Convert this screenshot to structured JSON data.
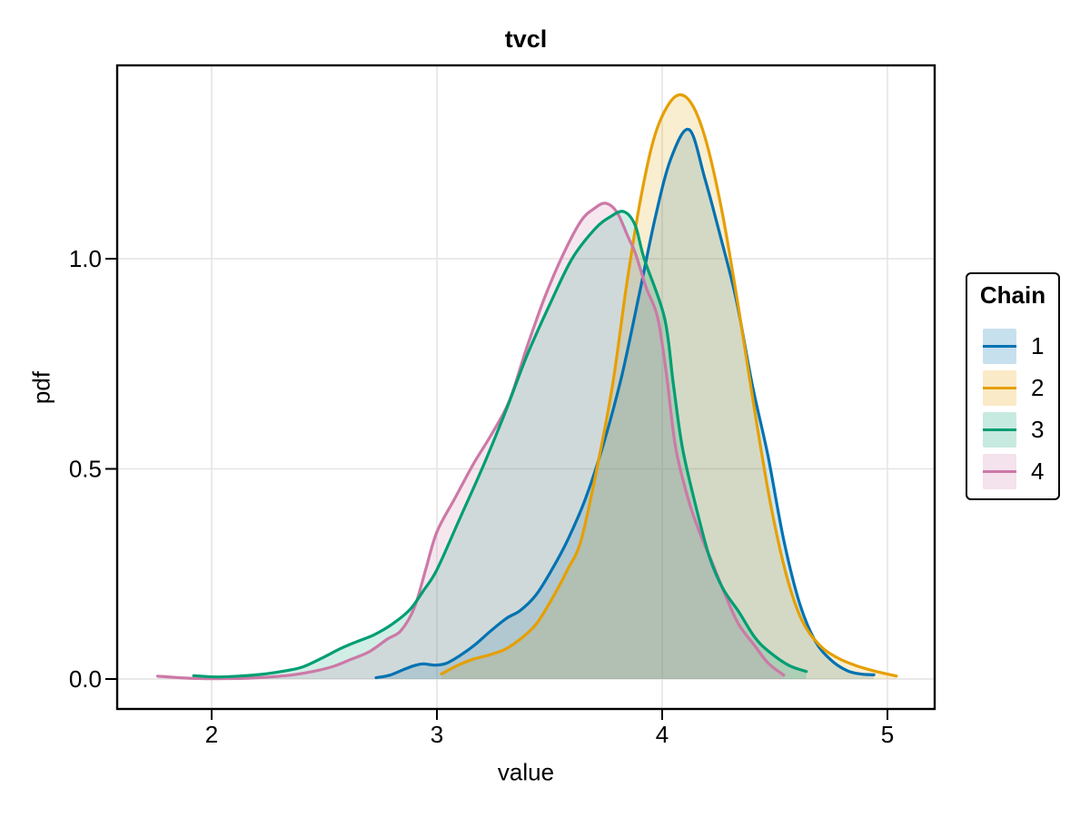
{
  "title": "tvcl",
  "axes": {
    "xlabel": "value",
    "ylabel": "pdf",
    "x_ticks": [
      {
        "v": 2,
        "label": "2"
      },
      {
        "v": 3,
        "label": "3"
      },
      {
        "v": 4,
        "label": "4"
      },
      {
        "v": 5,
        "label": "5"
      }
    ],
    "y_ticks": [
      {
        "v": 0.0,
        "label": "0.0"
      },
      {
        "v": 0.5,
        "label": "0.5"
      },
      {
        "v": 1.0,
        "label": "1.0"
      }
    ]
  },
  "legend": {
    "title": "Chain",
    "entries": [
      {
        "label": "1",
        "color": "#0072B2"
      },
      {
        "label": "2",
        "color": "#E69F00"
      },
      {
        "label": "3",
        "color": "#009E73"
      },
      {
        "label": "4",
        "color": "#CC79A7"
      }
    ]
  },
  "style": {
    "grid_color": "#e4e4e4",
    "spine_color": "#000000",
    "fill_opacity": 0.18,
    "line_width": 3.2
  },
  "chart_data": {
    "type": "area",
    "title": "tvcl",
    "xlabel": "value",
    "ylabel": "pdf",
    "xlim": [
      1.58,
      5.21
    ],
    "ylim": [
      -0.07,
      1.46
    ],
    "grid": true,
    "legend_title": "Chain",
    "legend_position": "right",
    "line_draw_order": [
      "1",
      "2",
      "4",
      "3"
    ],
    "series": [
      {
        "name": "1",
        "color": "#0072B2",
        "points": [
          [
            2.73,
            0.003
          ],
          [
            2.79,
            0.009
          ],
          [
            2.85,
            0.022
          ],
          [
            2.9,
            0.032
          ],
          [
            2.94,
            0.036
          ],
          [
            2.99,
            0.033
          ],
          [
            3.04,
            0.037
          ],
          [
            3.1,
            0.055
          ],
          [
            3.17,
            0.082
          ],
          [
            3.24,
            0.115
          ],
          [
            3.31,
            0.145
          ],
          [
            3.37,
            0.163
          ],
          [
            3.44,
            0.2
          ],
          [
            3.51,
            0.26
          ],
          [
            3.58,
            0.33
          ],
          [
            3.66,
            0.43
          ],
          [
            3.74,
            0.56
          ],
          [
            3.82,
            0.72
          ],
          [
            3.9,
            0.92
          ],
          [
            3.97,
            1.1
          ],
          [
            4.04,
            1.24
          ],
          [
            4.12,
            1.307
          ],
          [
            4.19,
            1.19
          ],
          [
            4.26,
            1.05
          ],
          [
            4.33,
            0.9
          ],
          [
            4.4,
            0.7
          ],
          [
            4.47,
            0.53
          ],
          [
            4.54,
            0.33
          ],
          [
            4.61,
            0.18
          ],
          [
            4.68,
            0.09
          ],
          [
            4.75,
            0.045
          ],
          [
            4.82,
            0.02
          ],
          [
            4.88,
            0.012
          ],
          [
            4.94,
            0.01
          ]
        ]
      },
      {
        "name": "2",
        "color": "#E69F00",
        "points": [
          [
            3.02,
            0.012
          ],
          [
            3.09,
            0.032
          ],
          [
            3.16,
            0.047
          ],
          [
            3.23,
            0.057
          ],
          [
            3.3,
            0.07
          ],
          [
            3.37,
            0.095
          ],
          [
            3.44,
            0.13
          ],
          [
            3.51,
            0.19
          ],
          [
            3.58,
            0.26
          ],
          [
            3.64,
            0.33
          ],
          [
            3.71,
            0.5
          ],
          [
            3.78,
            0.7
          ],
          [
            3.84,
            0.93
          ],
          [
            3.9,
            1.13
          ],
          [
            3.96,
            1.28
          ],
          [
            4.02,
            1.36
          ],
          [
            4.08,
            1.39
          ],
          [
            4.14,
            1.36
          ],
          [
            4.2,
            1.27
          ],
          [
            4.27,
            1.1
          ],
          [
            4.34,
            0.88
          ],
          [
            4.41,
            0.64
          ],
          [
            4.48,
            0.42
          ],
          [
            4.55,
            0.25
          ],
          [
            4.62,
            0.14
          ],
          [
            4.7,
            0.08
          ],
          [
            4.78,
            0.05
          ],
          [
            4.86,
            0.032
          ],
          [
            4.95,
            0.018
          ],
          [
            5.04,
            0.007
          ]
        ]
      },
      {
        "name": "3",
        "color": "#009E73",
        "points": [
          [
            1.92,
            0.008
          ],
          [
            2.02,
            0.005
          ],
          [
            2.12,
            0.007
          ],
          [
            2.22,
            0.011
          ],
          [
            2.31,
            0.018
          ],
          [
            2.4,
            0.028
          ],
          [
            2.49,
            0.05
          ],
          [
            2.57,
            0.072
          ],
          [
            2.64,
            0.088
          ],
          [
            2.72,
            0.105
          ],
          [
            2.8,
            0.13
          ],
          [
            2.88,
            0.165
          ],
          [
            2.94,
            0.21
          ],
          [
            3.0,
            0.26
          ],
          [
            3.1,
            0.38
          ],
          [
            3.2,
            0.5
          ],
          [
            3.3,
            0.63
          ],
          [
            3.4,
            0.77
          ],
          [
            3.5,
            0.89
          ],
          [
            3.6,
            1.0
          ],
          [
            3.7,
            1.07
          ],
          [
            3.77,
            1.1
          ],
          [
            3.83,
            1.112
          ],
          [
            3.88,
            1.08
          ],
          [
            3.92,
            1.0
          ],
          [
            4.01,
            0.86
          ],
          [
            4.05,
            0.7
          ],
          [
            4.09,
            0.55
          ],
          [
            4.15,
            0.41
          ],
          [
            4.21,
            0.29
          ],
          [
            4.27,
            0.215
          ],
          [
            4.34,
            0.16
          ],
          [
            4.41,
            0.1
          ],
          [
            4.47,
            0.067
          ],
          [
            4.56,
            0.033
          ],
          [
            4.64,
            0.018
          ]
        ]
      },
      {
        "name": "4",
        "color": "#CC79A7",
        "points": [
          [
            1.76,
            0.007
          ],
          [
            1.86,
            0.003
          ],
          [
            1.96,
            0.001
          ],
          [
            2.06,
            0.001
          ],
          [
            2.16,
            0.002
          ],
          [
            2.26,
            0.005
          ],
          [
            2.36,
            0.01
          ],
          [
            2.45,
            0.018
          ],
          [
            2.54,
            0.03
          ],
          [
            2.62,
            0.047
          ],
          [
            2.7,
            0.065
          ],
          [
            2.78,
            0.095
          ],
          [
            2.84,
            0.115
          ],
          [
            2.9,
            0.17
          ],
          [
            2.95,
            0.26
          ],
          [
            3.0,
            0.35
          ],
          [
            3.08,
            0.43
          ],
          [
            3.16,
            0.51
          ],
          [
            3.24,
            0.58
          ],
          [
            3.32,
            0.66
          ],
          [
            3.4,
            0.79
          ],
          [
            3.48,
            0.91
          ],
          [
            3.56,
            1.01
          ],
          [
            3.64,
            1.09
          ],
          [
            3.7,
            1.12
          ],
          [
            3.75,
            1.132
          ],
          [
            3.8,
            1.11
          ],
          [
            3.85,
            1.05
          ],
          [
            3.88,
            1.015
          ],
          [
            3.93,
            0.93
          ],
          [
            3.98,
            0.86
          ],
          [
            4.02,
            0.72
          ],
          [
            4.06,
            0.55
          ],
          [
            4.12,
            0.42
          ],
          [
            4.18,
            0.33
          ],
          [
            4.22,
            0.28
          ],
          [
            4.28,
            0.2
          ],
          [
            4.34,
            0.13
          ],
          [
            4.41,
            0.08
          ],
          [
            4.47,
            0.038
          ],
          [
            4.54,
            0.009
          ]
        ]
      }
    ]
  }
}
